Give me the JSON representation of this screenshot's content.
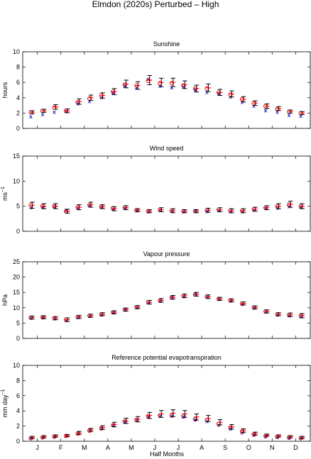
{
  "figure": {
    "title": "Elmdon (2020s) Perturbed – High",
    "xlabel": "Half Months",
    "month_labels": [
      "J",
      "F",
      "M",
      "A",
      "M",
      "J",
      "J",
      "A",
      "S",
      "O",
      "N",
      "D"
    ]
  },
  "colors": {
    "circle": "#ff0000",
    "cross": "#0000cc",
    "errorbar": "#000000",
    "median": "#ff0000"
  },
  "chart_data": [
    {
      "type": "scatter",
      "title": "Sunshine",
      "ylabel": "hours",
      "ylabel_sup": "",
      "ylim": [
        0,
        10
      ],
      "yticks": [
        0,
        2,
        4,
        6,
        8,
        10
      ],
      "x": [
        1,
        2,
        3,
        4,
        5,
        6,
        7,
        8,
        9,
        10,
        11,
        12,
        13,
        14,
        15,
        16,
        17,
        18,
        19,
        20,
        21,
        22,
        23,
        24
      ],
      "series": [
        {
          "marker": "circle",
          "values": [
            2.1,
            2.3,
            2.7,
            2.3,
            3.4,
            3.9,
            4.3,
            4.8,
            5.7,
            5.6,
            6.2,
            5.9,
            5.9,
            5.6,
            5.2,
            5.2,
            4.7,
            4.4,
            3.8,
            3.3,
            2.9,
            2.5,
            2.2,
            2.0
          ]
        },
        {
          "marker": "cross",
          "values": [
            1.5,
            1.8,
            2.1,
            2.2,
            3.2,
            3.5,
            4.0,
            4.6,
            5.5,
            5.3,
            6.4,
            5.5,
            5.3,
            5.4,
            5.0,
            4.7,
            4.5,
            4.1,
            3.4,
            2.9,
            2.3,
            2.1,
            1.7,
            1.6
          ]
        },
        {
          "marker": "errorbar",
          "center": [
            2.1,
            2.3,
            2.8,
            2.3,
            3.5,
            4.0,
            4.3,
            4.8,
            5.8,
            5.6,
            6.3,
            6.0,
            6.0,
            5.7,
            5.2,
            5.3,
            4.7,
            4.5,
            3.8,
            3.3,
            2.9,
            2.6,
            2.2,
            2.0
          ],
          "half_width": [
            0.2,
            0.2,
            0.3,
            0.25,
            0.35,
            0.35,
            0.35,
            0.4,
            0.5,
            0.5,
            0.6,
            0.55,
            0.55,
            0.5,
            0.45,
            0.5,
            0.4,
            0.4,
            0.35,
            0.3,
            0.3,
            0.25,
            0.2,
            0.2
          ]
        }
      ]
    },
    {
      "type": "scatter",
      "title": "Wind speed",
      "ylabel": "ms",
      "ylabel_sup": "−1",
      "ylim": [
        0,
        15
      ],
      "yticks": [
        0,
        5,
        10,
        15
      ],
      "x": [
        1,
        2,
        3,
        4,
        5,
        6,
        7,
        8,
        9,
        10,
        11,
        12,
        13,
        14,
        15,
        16,
        17,
        18,
        19,
        20,
        21,
        22,
        23,
        24
      ],
      "series": [
        {
          "marker": "circle",
          "values": [
            5.2,
            5.0,
            5.0,
            4.0,
            4.8,
            5.2,
            4.9,
            4.6,
            4.7,
            4.2,
            4.0,
            4.3,
            4.1,
            4.0,
            4.0,
            4.2,
            4.3,
            4.1,
            4.1,
            4.4,
            4.7,
            5.0,
            5.3,
            5.0
          ]
        },
        {
          "marker": "cross",
          "values": [
            4.7,
            4.8,
            4.9,
            4.1,
            4.6,
            5.1,
            4.8,
            4.4,
            4.6,
            4.1,
            3.9,
            4.2,
            4.0,
            3.9,
            4.0,
            3.9,
            4.1,
            3.9,
            3.9,
            4.2,
            4.6,
            4.6,
            4.9,
            4.8
          ]
        },
        {
          "marker": "errorbar",
          "center": [
            5.2,
            5.0,
            5.0,
            4.0,
            4.8,
            5.3,
            4.9,
            4.5,
            4.7,
            4.2,
            4.0,
            4.3,
            4.1,
            4.0,
            4.0,
            4.2,
            4.3,
            4.1,
            4.1,
            4.4,
            4.7,
            5.0,
            5.4,
            5.0
          ],
          "half_width": [
            0.6,
            0.5,
            0.5,
            0.4,
            0.5,
            0.5,
            0.4,
            0.4,
            0.4,
            0.3,
            0.3,
            0.4,
            0.4,
            0.3,
            0.3,
            0.4,
            0.4,
            0.4,
            0.4,
            0.4,
            0.4,
            0.5,
            0.6,
            0.5
          ]
        }
      ]
    },
    {
      "type": "scatter",
      "title": "Vapour pressure",
      "ylabel": "hPa",
      "ylabel_sup": "",
      "ylim": [
        0,
        25
      ],
      "yticks": [
        0,
        5,
        10,
        15,
        20,
        25
      ],
      "x": [
        1,
        2,
        3,
        4,
        5,
        6,
        7,
        8,
        9,
        10,
        11,
        12,
        13,
        14,
        15,
        16,
        17,
        18,
        19,
        20,
        21,
        22,
        23,
        24
      ],
      "series": [
        {
          "marker": "circle",
          "values": [
            6.8,
            6.9,
            6.6,
            6.1,
            7.0,
            7.4,
            7.8,
            8.5,
            9.4,
            10.2,
            11.8,
            12.3,
            13.3,
            13.8,
            14.3,
            13.6,
            12.9,
            12.4,
            11.3,
            10.1,
            8.8,
            7.8,
            7.6,
            7.3
          ]
        },
        {
          "marker": "cross",
          "values": [
            6.6,
            6.8,
            6.4,
            5.8,
            6.8,
            7.2,
            7.7,
            8.4,
            9.3,
            10.0,
            11.6,
            12.2,
            13.4,
            13.7,
            14.4,
            13.5,
            12.8,
            12.2,
            11.2,
            9.9,
            8.6,
            7.7,
            7.4,
            7.1
          ]
        },
        {
          "marker": "errorbar",
          "center": [
            6.8,
            6.9,
            6.6,
            6.1,
            7.0,
            7.4,
            7.9,
            8.5,
            9.4,
            10.2,
            11.8,
            12.4,
            13.4,
            13.9,
            14.4,
            13.6,
            12.9,
            12.4,
            11.4,
            10.1,
            8.8,
            7.9,
            7.7,
            7.4
          ],
          "half_width": [
            0.5,
            0.5,
            0.5,
            0.6,
            0.5,
            0.5,
            0.5,
            0.5,
            0.5,
            0.5,
            0.6,
            0.6,
            0.6,
            0.6,
            0.6,
            0.6,
            0.5,
            0.5,
            0.5,
            0.5,
            0.5,
            0.5,
            0.6,
            0.7
          ]
        }
      ]
    },
    {
      "type": "scatter",
      "title": "Reference potential evapotranspiration",
      "ylabel": "mm day",
      "ylabel_sup": "−1",
      "ylim": [
        0,
        10
      ],
      "yticks": [
        0,
        2,
        4,
        6,
        8,
        10
      ],
      "x": [
        1,
        2,
        3,
        4,
        5,
        6,
        7,
        8,
        9,
        10,
        11,
        12,
        13,
        14,
        15,
        16,
        17,
        18,
        19,
        20,
        21,
        22,
        23,
        24
      ],
      "series": [
        {
          "marker": "circle",
          "values": [
            0.4,
            0.5,
            0.6,
            0.7,
            1.0,
            1.4,
            1.7,
            2.1,
            2.6,
            2.8,
            3.3,
            3.4,
            3.4,
            3.3,
            2.9,
            2.8,
            2.3,
            1.8,
            1.3,
            0.9,
            0.7,
            0.6,
            0.5,
            0.4
          ]
        },
        {
          "marker": "cross",
          "values": [
            0.4,
            0.5,
            0.6,
            0.7,
            1.0,
            1.4,
            1.7,
            2.1,
            2.5,
            2.8,
            3.2,
            3.3,
            3.3,
            3.2,
            2.8,
            2.6,
            2.1,
            1.6,
            1.1,
            0.8,
            0.6,
            0.5,
            0.4,
            0.4
          ]
        },
        {
          "marker": "errorbar",
          "center": [
            0.5,
            0.6,
            0.7,
            0.75,
            1.1,
            1.5,
            1.8,
            2.2,
            2.7,
            2.9,
            3.4,
            3.6,
            3.7,
            3.6,
            3.2,
            3.0,
            2.5,
            1.9,
            1.4,
            1.0,
            0.8,
            0.7,
            0.6,
            0.5
          ],
          "half_width": [
            0.15,
            0.15,
            0.15,
            0.15,
            0.2,
            0.2,
            0.25,
            0.3,
            0.35,
            0.35,
            0.4,
            0.45,
            0.45,
            0.45,
            0.4,
            0.4,
            0.35,
            0.3,
            0.25,
            0.2,
            0.15,
            0.15,
            0.15,
            0.15
          ]
        }
      ]
    }
  ]
}
